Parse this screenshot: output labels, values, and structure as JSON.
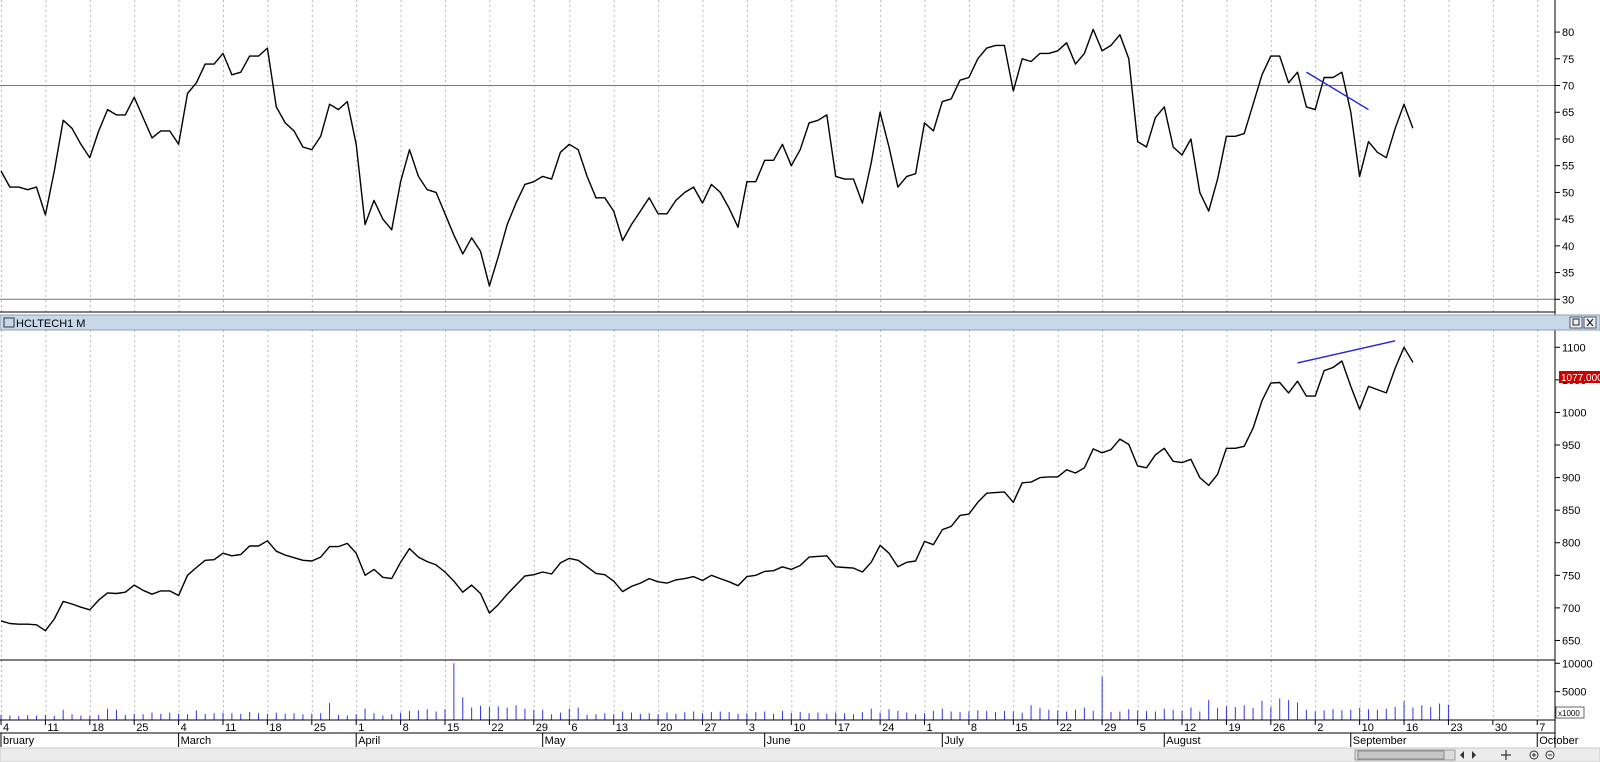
{
  "pane_title": "HCLTECH1 M",
  "price_marker_label": "1077.000",
  "volume_unit_label": "x1000",
  "colors": {
    "series": "#000000",
    "trendline": "#2222dd",
    "volume": "#3333ee",
    "marker_bg": "#cc0000",
    "titlebar": "#c8d8e8"
  },
  "icons": [
    "restore-icon",
    "close-icon",
    "scroll-left-icon",
    "scroll-right-icon",
    "cursor-icon",
    "zoom-in-icon",
    "zoom-out-icon"
  ],
  "chart_data": [
    {
      "type": "line",
      "name": "rsi-pane",
      "ylim": [
        28,
        86
      ],
      "yticks": [
        30,
        35,
        40,
        45,
        50,
        55,
        60,
        65,
        70,
        75,
        80
      ],
      "reference_lines": [
        70,
        30
      ],
      "values": [
        54,
        51,
        51,
        50.5,
        51,
        45.8,
        54,
        63.5,
        62,
        59,
        56.5,
        61.5,
        65.5,
        64.5,
        64.5,
        67.8,
        64,
        60.2,
        61.5,
        61.5,
        59,
        68.5,
        70.5,
        74,
        74,
        76,
        72,
        72.5,
        75.5,
        75.5,
        77,
        66,
        63,
        61.5,
        58.5,
        58,
        60.5,
        66.5,
        65.5,
        67,
        59,
        44,
        48.5,
        45,
        43,
        52,
        58,
        53,
        50.5,
        50,
        46,
        42,
        38.5,
        41.5,
        39,
        32.5,
        38,
        44,
        48,
        51.5,
        52,
        53,
        52.5,
        57.5,
        59,
        58,
        53,
        49,
        49,
        46.5,
        41,
        44,
        46.5,
        49,
        46,
        46,
        48.5,
        50,
        51,
        48,
        51.5,
        50,
        47,
        43.5,
        52,
        52,
        56,
        56,
        59,
        55,
        58,
        63,
        63.5,
        64.5,
        53,
        52.5,
        52.5,
        48,
        55.5,
        65,
        58.5,
        51,
        53,
        53.5,
        63,
        61.5,
        67,
        67.5,
        71,
        71.5,
        75,
        77,
        77.5,
        77.5,
        69,
        75,
        74.5,
        76,
        76,
        76.5,
        78,
        74,
        76,
        80.5,
        76.5,
        77.5,
        79.5,
        75,
        59.5,
        58.5,
        64,
        66,
        58.5,
        57,
        60,
        50,
        46.5,
        52.5,
        60.5,
        60.5,
        61,
        66.5,
        72,
        75.5,
        75.5,
        70.5,
        72.5,
        66,
        65.5,
        71.5,
        71.5,
        72.5,
        65,
        53,
        59.5,
        57.5,
        56.5,
        62,
        66.5,
        62
      ],
      "trendline": [
        [
          147,
          72.5
        ],
        [
          154,
          65.5
        ]
      ]
    },
    {
      "type": "line",
      "name": "price-pane",
      "ylim": [
        620,
        1125
      ],
      "yticks": [
        650,
        700,
        750,
        800,
        850,
        900,
        950,
        1000,
        1050,
        1100
      ],
      "values": [
        680,
        676,
        675,
        675,
        674,
        665,
        683,
        710,
        706,
        701,
        697,
        712,
        723,
        722,
        724,
        735,
        727,
        721,
        726,
        726,
        719,
        750,
        762,
        773,
        774,
        784,
        780,
        782,
        795,
        795,
        803,
        787,
        781,
        777,
        773,
        772,
        778,
        794,
        794,
        799,
        784,
        750,
        759,
        747,
        745,
        770,
        791,
        778,
        771,
        766,
        755,
        741,
        724,
        735,
        722,
        692,
        705,
        721,
        735,
        749,
        751,
        755,
        752,
        769,
        776,
        773,
        763,
        753,
        751,
        741,
        725,
        733,
        738,
        745,
        740,
        738,
        743,
        745,
        748,
        742,
        750,
        745,
        740,
        734,
        748,
        750,
        756,
        757,
        763,
        759,
        765,
        778,
        779,
        780,
        763,
        762,
        761,
        755,
        770,
        796,
        784,
        763,
        770,
        772,
        802,
        797,
        820,
        825,
        842,
        844,
        862,
        876,
        877,
        878,
        862,
        892,
        893,
        900,
        901,
        901,
        912,
        907,
        915,
        944,
        938,
        943,
        959,
        951,
        918,
        915,
        935,
        945,
        925,
        923,
        928,
        900,
        888,
        905,
        945,
        945,
        948,
        976,
        1018,
        1045,
        1046,
        1030,
        1048,
        1025,
        1025,
        1064,
        1069,
        1079,
        1040,
        1005,
        1040,
        1035,
        1030,
        1068,
        1100,
        1077
      ],
      "trendline": [
        [
          146,
          1076
        ],
        [
          157,
          1110
        ]
      ]
    },
    {
      "type": "bar",
      "name": "volume-pane",
      "ylim": [
        0,
        10400
      ],
      "yticks": [
        5000,
        10000
      ],
      "values": [
        900,
        800,
        700,
        850,
        800,
        900,
        700,
        1800,
        1000,
        800,
        700,
        900,
        2000,
        1800,
        900,
        1100,
        1000,
        1300,
        1100,
        1300,
        1100,
        1000,
        1700,
        1100,
        1200,
        1300,
        1200,
        1100,
        1400,
        1200,
        1100,
        1300,
        1100,
        1200,
        1000,
        1100,
        1200,
        3000,
        900,
        800,
        1000,
        2000,
        1200,
        800,
        1000,
        1300,
        1600,
        1700,
        1900,
        1500,
        1900,
        10000,
        4000,
        2200,
        2500,
        2300,
        2400,
        2200,
        2600,
        2000,
        1800,
        1800,
        1000,
        1300,
        2000,
        2200,
        900,
        1000,
        1200,
        1000,
        1500,
        1300,
        1100,
        1200,
        1000,
        1300,
        1100,
        1400,
        1500,
        1200,
        1400,
        1500,
        1400,
        1100,
        1200,
        1400,
        1500,
        1100,
        1600,
        1300,
        1400,
        1200,
        1300,
        1100,
        1300,
        1200,
        1000,
        1400,
        2000,
        1300,
        1900,
        1600,
        1300,
        1000,
        1200,
        1600,
        2000,
        1500,
        1400,
        1500,
        1700,
        1600,
        1400,
        1600,
        1500,
        1300,
        2600,
        2100,
        1800,
        1700,
        1500,
        1800,
        2200,
        1600,
        7600,
        1400,
        1500,
        1900,
        1700,
        1600,
        1500,
        2000,
        1800,
        1600,
        2200,
        1500,
        3500,
        2100,
        2400,
        2300,
        2600,
        2100,
        3400,
        2300,
        3800,
        3500,
        3100,
        1800,
        1500,
        1700,
        1900,
        1700,
        1800,
        2100,
        1900,
        1800,
        2000,
        2300,
        3300,
        2200,
        2600,
        2300,
        2900,
        2700
      ]
    }
  ],
  "x_axis": {
    "day_labels": [
      {
        "index": 0,
        "text": "4"
      },
      {
        "index": 5,
        "text": "11"
      },
      {
        "index": 10,
        "text": "18"
      },
      {
        "index": 15,
        "text": "25"
      },
      {
        "index": 20,
        "text": "4"
      },
      {
        "index": 25,
        "text": "11"
      },
      {
        "index": 30,
        "text": "18"
      },
      {
        "index": 35,
        "text": "25"
      },
      {
        "index": 40,
        "text": "1"
      },
      {
        "index": 45,
        "text": "8"
      },
      {
        "index": 50,
        "text": "15"
      },
      {
        "index": 55,
        "text": "22"
      },
      {
        "index": 60,
        "text": "29"
      },
      {
        "index": 64,
        "text": "6"
      },
      {
        "index": 69,
        "text": "13"
      },
      {
        "index": 74,
        "text": "20"
      },
      {
        "index": 79,
        "text": "27"
      },
      {
        "index": 84,
        "text": "3"
      },
      {
        "index": 89,
        "text": "10"
      },
      {
        "index": 94,
        "text": "17"
      },
      {
        "index": 99,
        "text": "24"
      },
      {
        "index": 104,
        "text": "1"
      },
      {
        "index": 109,
        "text": "8"
      },
      {
        "index": 114,
        "text": "15"
      },
      {
        "index": 119,
        "text": "22"
      },
      {
        "index": 124,
        "text": "29"
      },
      {
        "index": 128,
        "text": "5"
      },
      {
        "index": 133,
        "text": "12"
      },
      {
        "index": 138,
        "text": "19"
      },
      {
        "index": 143,
        "text": "26"
      },
      {
        "index": 148,
        "text": "2"
      },
      {
        "index": 153,
        "text": "10"
      },
      {
        "index": 158,
        "text": "16"
      },
      {
        "index": 163,
        "text": "23"
      },
      {
        "index": 168,
        "text": "30"
      },
      {
        "index": 173,
        "text": "7"
      }
    ],
    "month_labels": [
      {
        "index": 0,
        "text": "bruary"
      },
      {
        "index": 20,
        "text": "March"
      },
      {
        "index": 40,
        "text": "April"
      },
      {
        "index": 61,
        "text": "May"
      },
      {
        "index": 86,
        "text": "June"
      },
      {
        "index": 106,
        "text": "July"
      },
      {
        "index": 131,
        "text": "August"
      },
      {
        "index": 152,
        "text": "September"
      },
      {
        "index": 173,
        "text": "October"
      }
    ]
  }
}
